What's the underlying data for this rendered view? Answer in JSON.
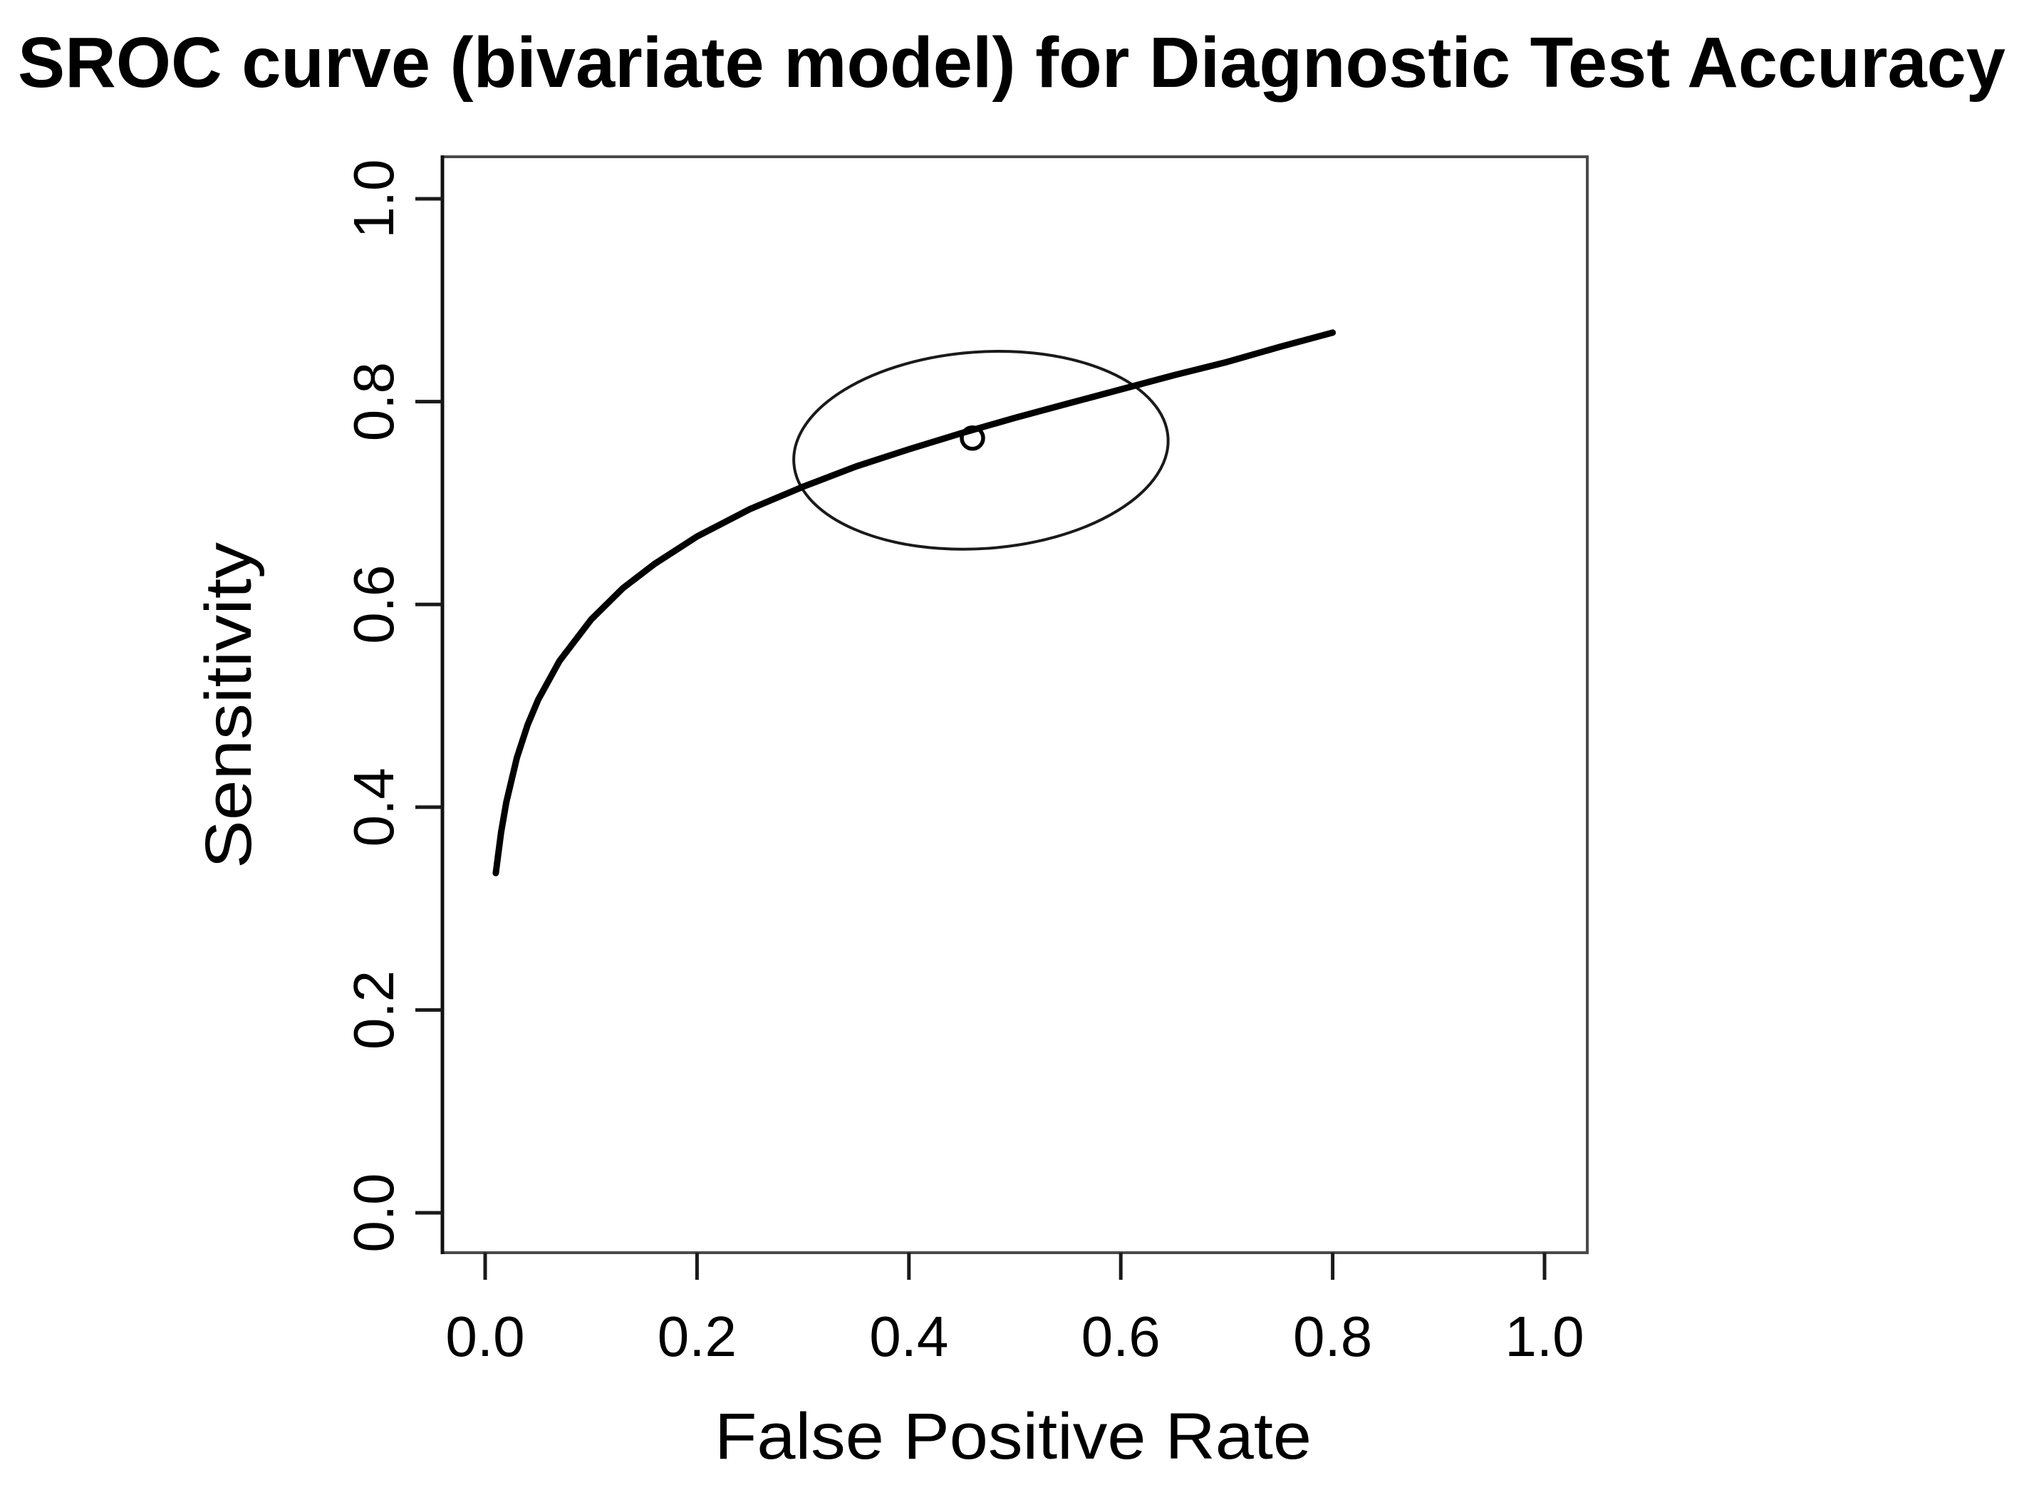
{
  "title": "SROC curve (bivariate model) for Diagnostic Test Accuracy",
  "x_axis": {
    "label": "False Positive Rate",
    "tick_labels": [
      "0.0",
      "0.2",
      "0.4",
      "0.6",
      "0.8",
      "1.0"
    ],
    "tick_values": [
      0.0,
      0.2,
      0.4,
      0.6,
      0.8,
      1.0
    ],
    "range": [
      0.0,
      1.0
    ]
  },
  "y_axis": {
    "label": "Sensitivity",
    "tick_labels": [
      "0.0",
      "0.2",
      "0.4",
      "0.6",
      "0.8",
      "1.0"
    ],
    "tick_values": [
      0.0,
      0.2,
      0.4,
      0.6,
      0.8,
      1.0
    ],
    "range": [
      0.0,
      1.0
    ]
  },
  "colors": {
    "background": "#ffffff",
    "curve": "#000000",
    "box": "#4a4a4a",
    "text": "#000000"
  },
  "chart_data": {
    "type": "line",
    "title": "SROC curve (bivariate model) for Diagnostic Test Accuracy",
    "xlabel": "False Positive Rate",
    "ylabel": "Sensitivity",
    "xlim": [
      0.0,
      1.0
    ],
    "ylim": [
      0.0,
      1.0
    ],
    "grid": false,
    "legend_position": "none",
    "series": [
      {
        "name": "SROC curve",
        "type": "line",
        "color": "#000000",
        "x": [
          0.01,
          0.015,
          0.02,
          0.03,
          0.04,
          0.05,
          0.07,
          0.1,
          0.13,
          0.16,
          0.2,
          0.25,
          0.3,
          0.35,
          0.4,
          0.45,
          0.5,
          0.55,
          0.6,
          0.65,
          0.7,
          0.75,
          0.8
        ],
        "y": [
          0.335,
          0.375,
          0.405,
          0.449,
          0.481,
          0.506,
          0.544,
          0.585,
          0.616,
          0.64,
          0.667,
          0.694,
          0.716,
          0.736,
          0.753,
          0.769,
          0.784,
          0.798,
          0.812,
          0.826,
          0.839,
          0.854,
          0.868
        ]
      }
    ],
    "summary_point": {
      "name": "summary estimate",
      "marker": "open-circle",
      "fpr": 0.46,
      "sensitivity": 0.764
    },
    "confidence_ellipse": {
      "name": "confidence region",
      "center_fpr": 0.468,
      "center_sensitivity": 0.752,
      "semi_axis_fpr": 0.177,
      "semi_axis_sensitivity": 0.097,
      "rotation_deg": -4
    }
  }
}
